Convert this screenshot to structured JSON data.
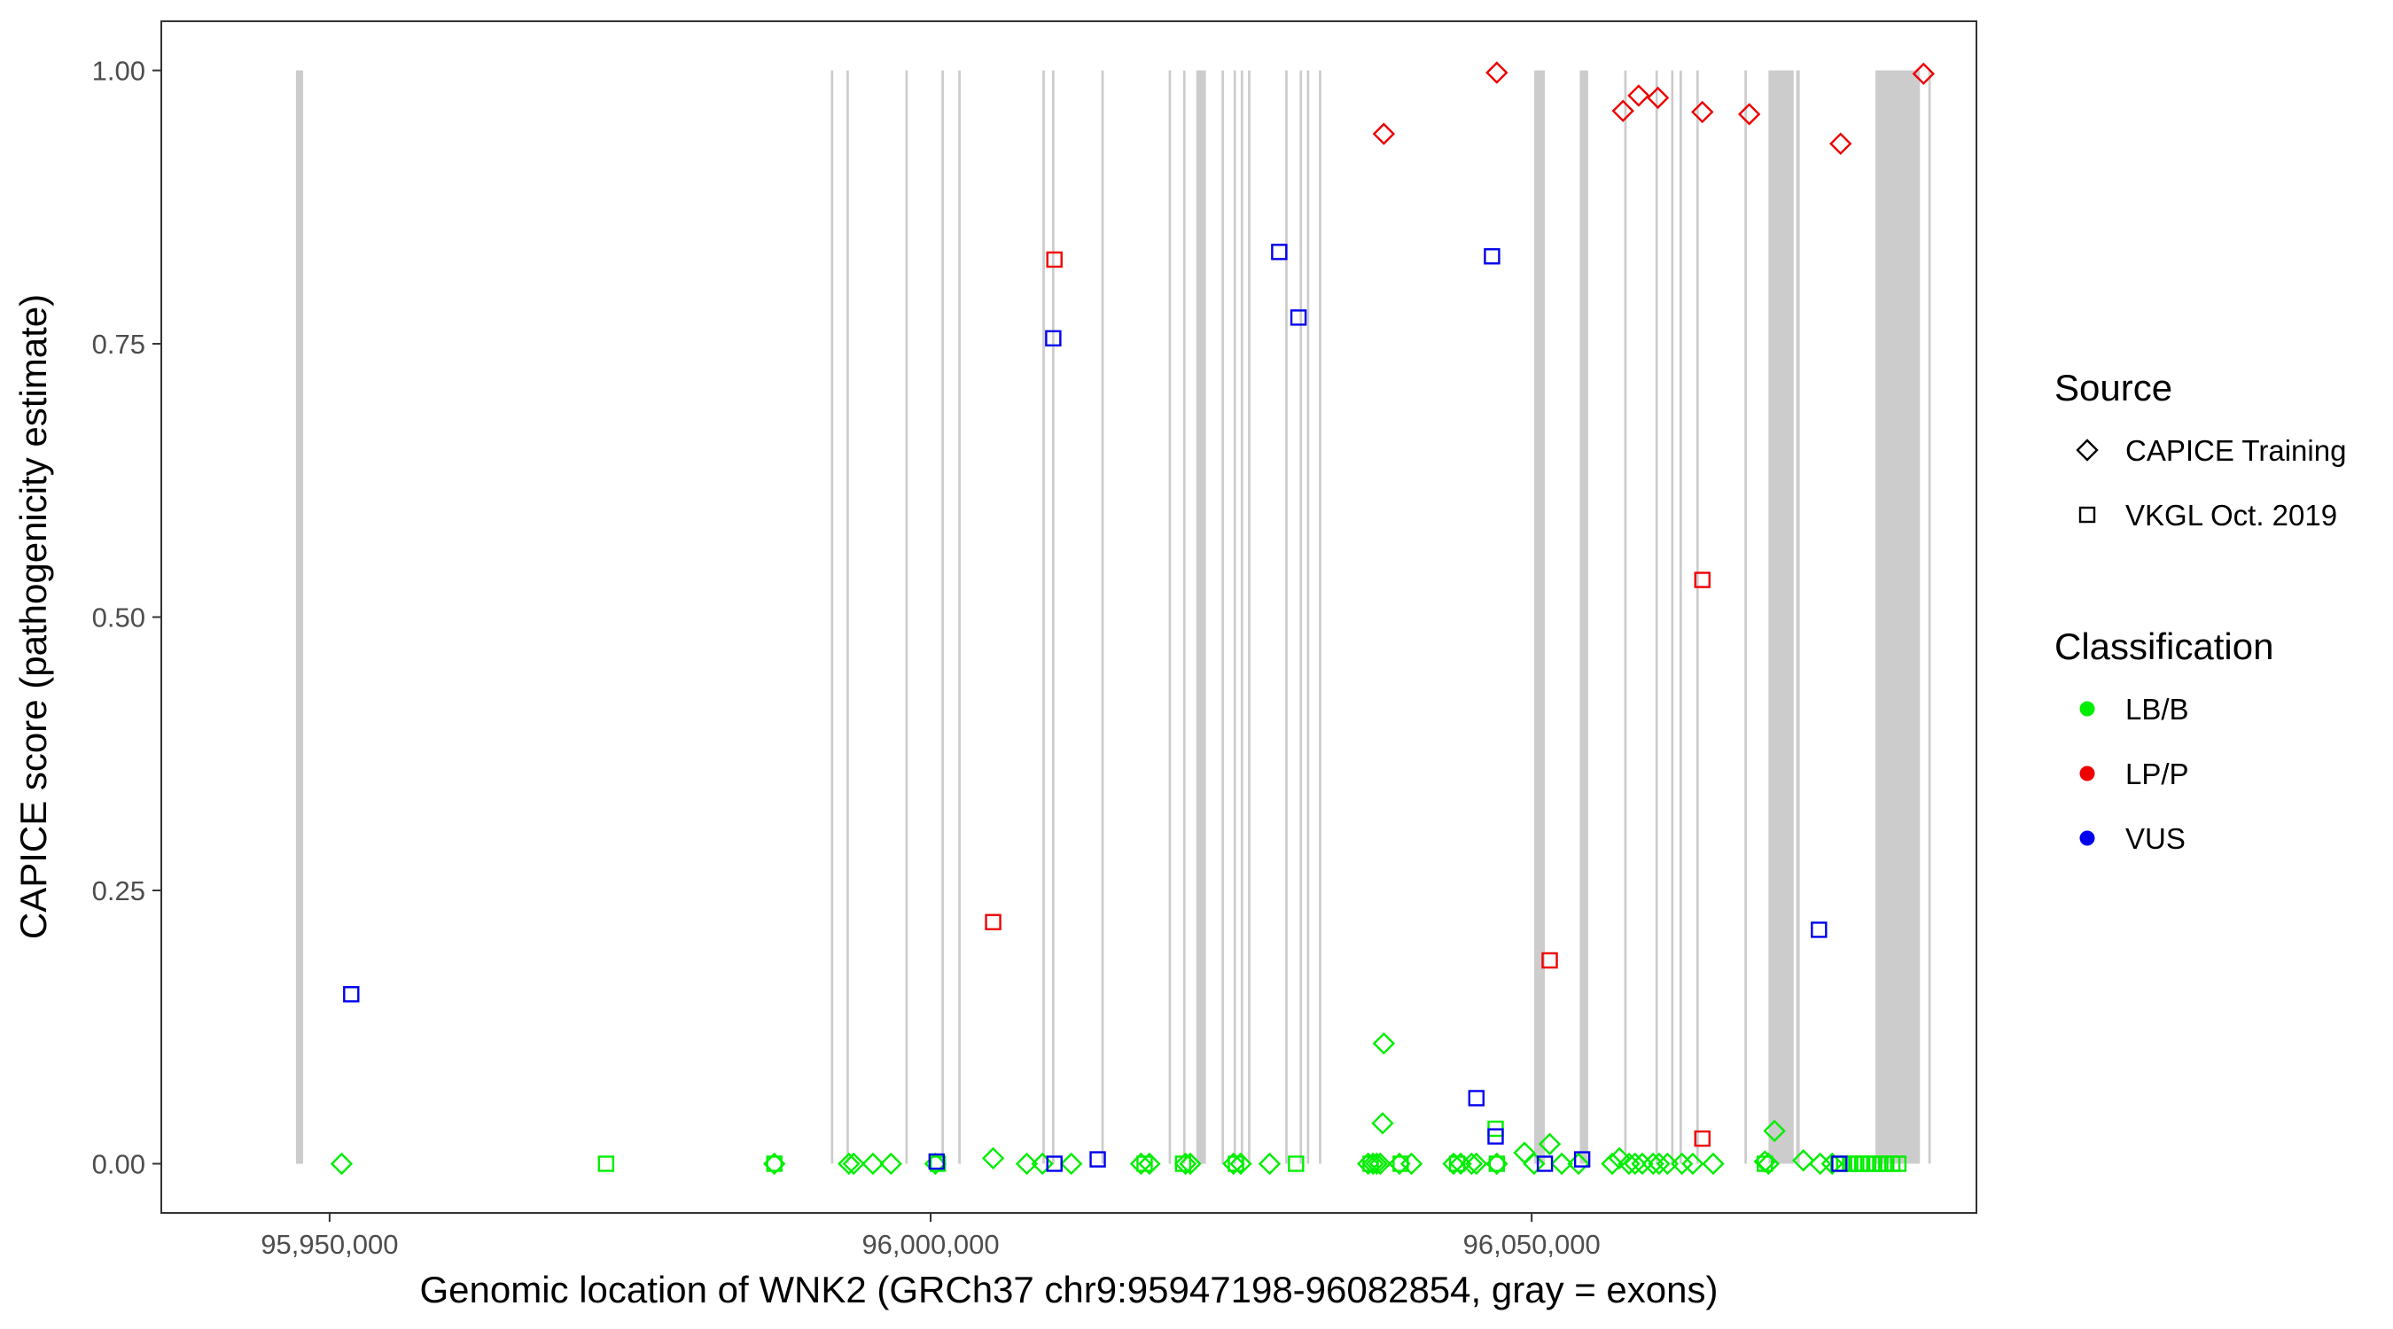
{
  "chart_data": {
    "type": "scatter",
    "title": "",
    "xlabel": "Genomic location of WNK2 (GRCh37 chr9:95947198-96082854, gray = exons)",
    "ylabel": "CAPICE score (pathogenicity estimate)",
    "xlim": [
      95936000,
      96087000
    ],
    "ylim": [
      -0.045,
      1.045
    ],
    "x_ticks": [
      95950000,
      96000000,
      96050000
    ],
    "x_tick_labels": [
      "95,950,000",
      "96,000,000",
      "96,050,000"
    ],
    "y_ticks": [
      0,
      0.25,
      0.5,
      0.75,
      1.0
    ],
    "y_tick_labels": [
      "0.00",
      "0.25",
      "0.50",
      "0.75",
      "1.00"
    ],
    "grid": false,
    "exons": [
      [
        95947200,
        95947800
      ],
      [
        95991700,
        95991900
      ],
      [
        95993000,
        95993200
      ],
      [
        95997900,
        95998100
      ],
      [
        96000900,
        96001100
      ],
      [
        96002300,
        96002500
      ],
      [
        96009300,
        96009500
      ],
      [
        96010100,
        96010300
      ],
      [
        96014200,
        96014400
      ],
      [
        96019800,
        96020000
      ],
      [
        96021000,
        96021200
      ],
      [
        96022100,
        96022900
      ],
      [
        96024200,
        96024400
      ],
      [
        96025200,
        96025400
      ],
      [
        96025800,
        96026000
      ],
      [
        96026400,
        96026600
      ],
      [
        96029500,
        96029700
      ],
      [
        96030700,
        96030900
      ],
      [
        96031300,
        96031500
      ],
      [
        96032300,
        96032500
      ],
      [
        96050200,
        96051100
      ],
      [
        96054000,
        96054700
      ],
      [
        96057700,
        96057900
      ],
      [
        96060300,
        96060500
      ],
      [
        96061600,
        96061800
      ],
      [
        96062300,
        96062500
      ],
      [
        96063700,
        96063900
      ],
      [
        96067700,
        96067900
      ],
      [
        96069700,
        96071800
      ],
      [
        96072000,
        96072300
      ],
      [
        96078600,
        96082300
      ],
      [
        96083000,
        96083200
      ]
    ],
    "legend": {
      "placement": "right",
      "source_title": "Source",
      "source_items": [
        {
          "label": "CAPICE Training",
          "shape": "diamond"
        },
        {
          "label": "VKGL Oct. 2019",
          "shape": "square"
        }
      ],
      "class_title": "Classification",
      "class_items": [
        {
          "label": "LB/B",
          "color": "#00ee00"
        },
        {
          "label": "LP/P",
          "color": "#ee0000"
        },
        {
          "label": "VUS",
          "color": "#0000ee"
        }
      ]
    },
    "series": [
      {
        "source": "CAPICE Training",
        "classification": "LB/B",
        "points": [
          [
            95951000,
            0.0
          ],
          [
            95987000,
            0.0
          ],
          [
            95993200,
            0.0
          ],
          [
            95993600,
            0.0
          ],
          [
            95995200,
            0.0
          ],
          [
            95996700,
            0.0
          ],
          [
            96000400,
            0.0
          ],
          [
            96005200,
            0.005
          ],
          [
            96008000,
            0.0
          ],
          [
            96009300,
            0.0
          ],
          [
            96011700,
            0.0
          ],
          [
            96017500,
            0.0
          ],
          [
            96018200,
            0.0
          ],
          [
            96021200,
            0.0
          ],
          [
            96021600,
            0.0
          ],
          [
            96025200,
            0.0
          ],
          [
            96025800,
            0.0
          ],
          [
            96028200,
            0.0
          ],
          [
            96036400,
            0.0
          ],
          [
            96036800,
            0.0
          ],
          [
            96037100,
            0.0
          ],
          [
            96037400,
            0.0
          ],
          [
            96037700,
            0.11
          ],
          [
            96037600,
            0.037
          ],
          [
            96039000,
            0.0
          ],
          [
            96040000,
            0.0
          ],
          [
            96043500,
            0.0
          ],
          [
            96044100,
            0.0
          ],
          [
            96045000,
            0.0
          ],
          [
            96045400,
            0.0
          ],
          [
            96047100,
            0.0
          ],
          [
            96049400,
            0.01
          ],
          [
            96050200,
            0.0
          ],
          [
            96051500,
            0.018
          ],
          [
            96052500,
            0.0
          ],
          [
            96053900,
            0.0
          ],
          [
            96056700,
            0.0
          ],
          [
            96057300,
            0.005
          ],
          [
            96058100,
            0.0
          ],
          [
            96058600,
            0.0
          ],
          [
            96059200,
            0.0
          ],
          [
            96060100,
            0.0
          ],
          [
            96060600,
            0.0
          ],
          [
            96061300,
            0.0
          ],
          [
            96062500,
            0.0
          ],
          [
            96063400,
            0.0
          ],
          [
            96065100,
            0.0
          ],
          [
            96069400,
            0.002
          ],
          [
            96069700,
            0.0
          ],
          [
            96070200,
            0.03
          ],
          [
            96072600,
            0.003
          ],
          [
            96074000,
            0.0
          ],
          [
            96075000,
            0.0
          ]
        ]
      },
      {
        "source": "CAPICE Training",
        "classification": "LP/P",
        "points": [
          [
            96037700,
            0.942
          ],
          [
            96047100,
            0.998
          ],
          [
            96057600,
            0.963
          ],
          [
            96058900,
            0.977
          ],
          [
            96060500,
            0.975
          ],
          [
            96064200,
            0.962
          ],
          [
            96068100,
            0.96
          ],
          [
            96075700,
            0.933
          ],
          [
            96082600,
            0.997
          ]
        ]
      },
      {
        "source": "VKGL Oct. 2019",
        "classification": "LB/B",
        "points": [
          [
            95973000,
            0.0
          ],
          [
            95987000,
            0.0
          ],
          [
            96000600,
            0.0
          ],
          [
            96017800,
            0.0
          ],
          [
            96021000,
            0.0
          ],
          [
            96025400,
            0.0
          ],
          [
            96030400,
            0.0
          ],
          [
            96036600,
            0.0
          ],
          [
            96039100,
            0.0
          ],
          [
            96043800,
            0.0
          ],
          [
            96047100,
            0.0
          ],
          [
            96047000,
            0.032
          ],
          [
            96069400,
            0.0
          ],
          [
            96075500,
            0.0
          ],
          [
            96076000,
            0.0
          ],
          [
            96076500,
            0.0
          ],
          [
            96077000,
            0.0
          ],
          [
            96077500,
            0.0
          ],
          [
            96078000,
            0.0
          ],
          [
            96078500,
            0.0
          ],
          [
            96079000,
            0.0
          ],
          [
            96079500,
            0.0
          ],
          [
            96080000,
            0.0
          ],
          [
            96080500,
            0.0
          ]
        ]
      },
      {
        "source": "VKGL Oct. 2019",
        "classification": "LP/P",
        "points": [
          [
            96005200,
            0.221
          ],
          [
            96010300,
            0.827
          ],
          [
            96051500,
            0.186
          ],
          [
            96064200,
            0.534
          ],
          [
            96064200,
            0.023
          ]
        ]
      },
      {
        "source": "VKGL Oct. 2019",
        "classification": "VUS",
        "points": [
          [
            95951800,
            0.155
          ],
          [
            96000500,
            0.002
          ],
          [
            96010200,
            0.755
          ],
          [
            96010300,
            0.0
          ],
          [
            96013900,
            0.004
          ],
          [
            96029000,
            0.834
          ],
          [
            96030600,
            0.774
          ],
          [
            96045400,
            0.06
          ],
          [
            96046700,
            0.83
          ],
          [
            96047000,
            0.025
          ],
          [
            96051100,
            0.0
          ],
          [
            96054200,
            0.004
          ],
          [
            96073900,
            0.214
          ],
          [
            96075600,
            0.0
          ]
        ]
      }
    ]
  }
}
